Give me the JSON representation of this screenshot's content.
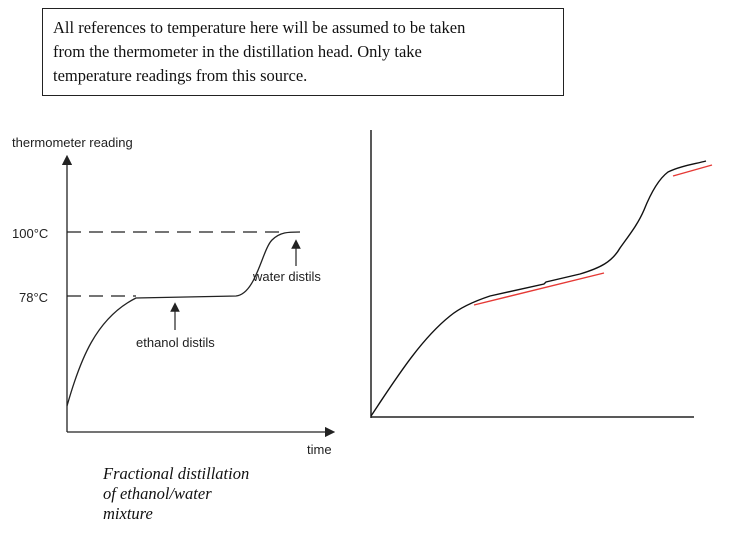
{
  "note": {
    "lines": [
      "All references to temperature here will be assumed to be taken",
      "from the thermometer in the distillation head. Only take",
      "temperature readings from this source."
    ]
  },
  "left_diagram": {
    "ylabel": "thermometer reading",
    "xlabel": "time",
    "y_ticks": [
      "100°C",
      "78°C"
    ],
    "annotations": [
      "water distils",
      "ethanol distils"
    ],
    "caption_lines": [
      "Fractional distillation",
      "of ethanol/water",
      "mixture"
    ]
  }
}
